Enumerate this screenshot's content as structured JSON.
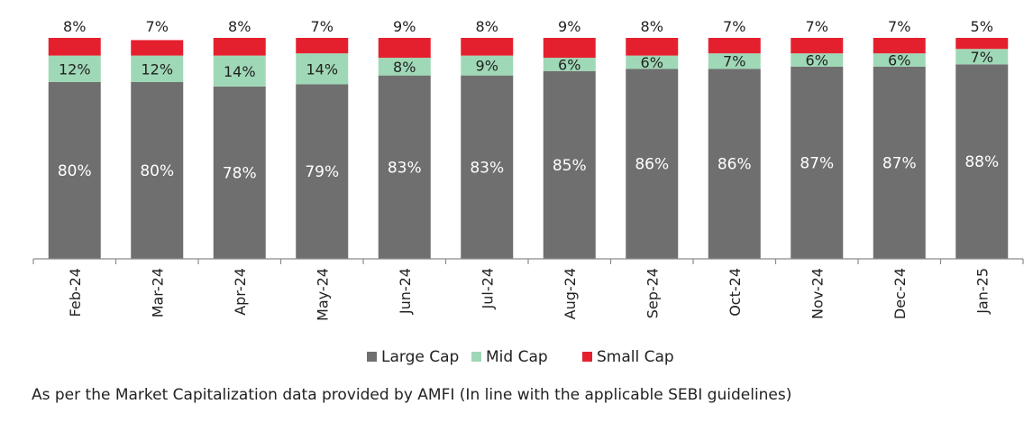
{
  "chart_data": {
    "type": "bar",
    "stacked": true,
    "percent_stacked": true,
    "categories": [
      "Feb-24",
      "Mar-24",
      "Apr-24",
      "May-24",
      "Jun-24",
      "Jul-24",
      "Aug-24",
      "Sep-24",
      "Oct-24",
      "Nov-24",
      "Dec-24",
      "Jan-25"
    ],
    "series": [
      {
        "name": "Large Cap",
        "color": "#6f6f6f",
        "values": [
          80,
          80,
          78,
          79,
          83,
          83,
          85,
          86,
          86,
          87,
          87,
          88
        ],
        "labels": [
          "80%",
          "80%",
          "78%",
          "79%",
          "83%",
          "83%",
          "85%",
          "86%",
          "86%",
          "87%",
          "87%",
          "88%"
        ]
      },
      {
        "name": "Mid Cap",
        "color": "#9fd8b6",
        "values": [
          12,
          12,
          14,
          14,
          8,
          9,
          6,
          6,
          7,
          6,
          6,
          7
        ],
        "labels": [
          "12%",
          "12%",
          "14%",
          "14%",
          "8%",
          "9%",
          "6%",
          "6%",
          "7%",
          "6%",
          "6%",
          "7%"
        ]
      },
      {
        "name": "Small Cap",
        "color": "#e5202e",
        "values": [
          8,
          7,
          8,
          7,
          9,
          8,
          9,
          8,
          7,
          7,
          7,
          5
        ],
        "labels": [
          "8%",
          "7%",
          "8%",
          "7%",
          "9%",
          "8%",
          "9%",
          "8%",
          "7%",
          "7%",
          "7%",
          "5%"
        ]
      }
    ],
    "ylim": [
      0,
      100
    ],
    "grid": false,
    "legend_position": "bottom-center",
    "footnote": "As per the Market Capitalization data provided by AMFI (In line with the applicable SEBI guidelines)"
  }
}
